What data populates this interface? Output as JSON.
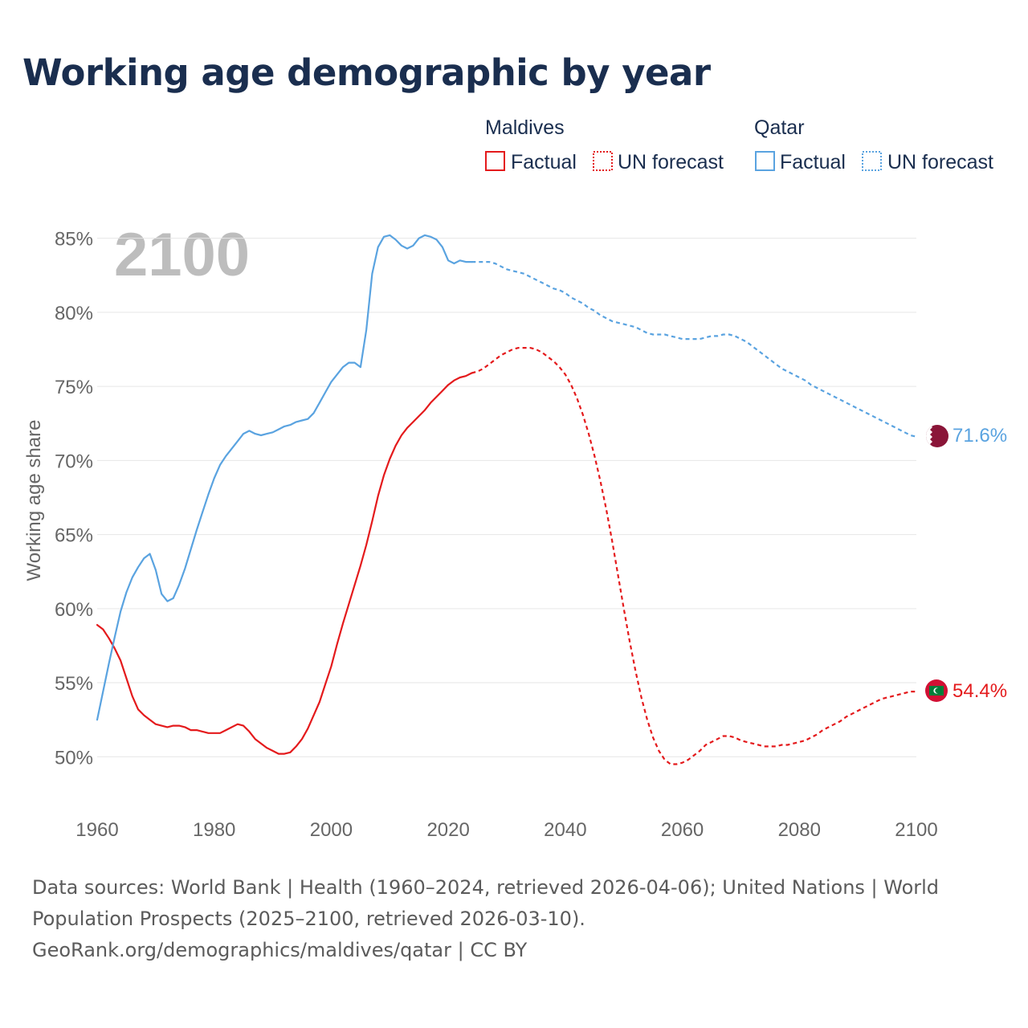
{
  "title": "Working age demographic by year",
  "year_watermark": "2100",
  "legend": {
    "groups": [
      {
        "name": "Maldives",
        "color": "#e41a1c",
        "factual_label": "Factual",
        "forecast_label": "UN forecast"
      },
      {
        "name": "Qatar",
        "color": "#5aa3e0",
        "factual_label": "Factual",
        "forecast_label": "UN forecast"
      }
    ]
  },
  "chart_data": {
    "type": "line",
    "title": "Working age demographic by year",
    "xlabel": "",
    "ylabel": "Working age share",
    "xlim": [
      1960,
      2100
    ],
    "ylim": [
      47.5,
      86.5
    ],
    "x_ticks": [
      1960,
      1980,
      2000,
      2020,
      2040,
      2060,
      2080,
      2100
    ],
    "y_ticks": [
      50,
      55,
      60,
      65,
      70,
      75,
      80,
      85
    ],
    "y_tick_labels": [
      "50%",
      "55%",
      "60%",
      "65%",
      "70%",
      "75%",
      "80%",
      "85%"
    ],
    "grid": true,
    "series": [
      {
        "name": "Maldives",
        "color": "#e41a1c",
        "end_label": "54.4%",
        "factual": [
          [
            1960,
            58.9
          ],
          [
            1961,
            58.6
          ],
          [
            1962,
            58.0
          ],
          [
            1963,
            57.3
          ],
          [
            1964,
            56.5
          ],
          [
            1965,
            55.3
          ],
          [
            1966,
            54.1
          ],
          [
            1967,
            53.2
          ],
          [
            1968,
            52.8
          ],
          [
            1969,
            52.5
          ],
          [
            1970,
            52.2
          ],
          [
            1971,
            52.1
          ],
          [
            1972,
            52.0
          ],
          [
            1973,
            52.1
          ],
          [
            1974,
            52.1
          ],
          [
            1975,
            52.0
          ],
          [
            1976,
            51.8
          ],
          [
            1977,
            51.8
          ],
          [
            1978,
            51.7
          ],
          [
            1979,
            51.6
          ],
          [
            1980,
            51.6
          ],
          [
            1981,
            51.6
          ],
          [
            1982,
            51.8
          ],
          [
            1983,
            52.0
          ],
          [
            1984,
            52.2
          ],
          [
            1985,
            52.1
          ],
          [
            1986,
            51.7
          ],
          [
            1987,
            51.2
          ],
          [
            1988,
            50.9
          ],
          [
            1989,
            50.6
          ],
          [
            1990,
            50.4
          ],
          [
            1991,
            50.2
          ],
          [
            1992,
            50.2
          ],
          [
            1993,
            50.3
          ],
          [
            1994,
            50.7
          ],
          [
            1995,
            51.2
          ],
          [
            1996,
            51.9
          ],
          [
            1997,
            52.8
          ],
          [
            1998,
            53.7
          ],
          [
            1999,
            54.9
          ],
          [
            2000,
            56.1
          ],
          [
            2001,
            57.6
          ],
          [
            2002,
            59.0
          ],
          [
            2003,
            60.3
          ],
          [
            2004,
            61.6
          ],
          [
            2005,
            62.9
          ],
          [
            2006,
            64.3
          ],
          [
            2007,
            65.9
          ],
          [
            2008,
            67.6
          ],
          [
            2009,
            69.0
          ],
          [
            2010,
            70.1
          ],
          [
            2011,
            71.0
          ],
          [
            2012,
            71.7
          ],
          [
            2013,
            72.2
          ],
          [
            2014,
            72.6
          ],
          [
            2015,
            73.0
          ],
          [
            2016,
            73.4
          ],
          [
            2017,
            73.9
          ],
          [
            2018,
            74.3
          ],
          [
            2019,
            74.7
          ],
          [
            2020,
            75.1
          ],
          [
            2021,
            75.4
          ],
          [
            2022,
            75.6
          ],
          [
            2023,
            75.7
          ],
          [
            2024,
            75.9
          ]
        ],
        "forecast": [
          [
            2024,
            75.9
          ],
          [
            2025,
            76.0
          ],
          [
            2026,
            76.2
          ],
          [
            2027,
            76.5
          ],
          [
            2028,
            76.8
          ],
          [
            2029,
            77.1
          ],
          [
            2030,
            77.3
          ],
          [
            2031,
            77.5
          ],
          [
            2032,
            77.6
          ],
          [
            2033,
            77.6
          ],
          [
            2034,
            77.6
          ],
          [
            2035,
            77.5
          ],
          [
            2036,
            77.3
          ],
          [
            2037,
            77.0
          ],
          [
            2038,
            76.7
          ],
          [
            2039,
            76.3
          ],
          [
            2040,
            75.8
          ],
          [
            2041,
            75.1
          ],
          [
            2042,
            74.2
          ],
          [
            2043,
            73.1
          ],
          [
            2044,
            71.8
          ],
          [
            2045,
            70.3
          ],
          [
            2046,
            68.6
          ],
          [
            2047,
            66.7
          ],
          [
            2048,
            64.6
          ],
          [
            2049,
            62.3
          ],
          [
            2050,
            60.0
          ],
          [
            2051,
            57.8
          ],
          [
            2052,
            55.8
          ],
          [
            2053,
            54.0
          ],
          [
            2054,
            52.5
          ],
          [
            2055,
            51.3
          ],
          [
            2056,
            50.4
          ],
          [
            2057,
            49.8
          ],
          [
            2058,
            49.5
          ],
          [
            2059,
            49.5
          ],
          [
            2060,
            49.6
          ],
          [
            2061,
            49.8
          ],
          [
            2062,
            50.1
          ],
          [
            2063,
            50.4
          ],
          [
            2064,
            50.8
          ],
          [
            2065,
            51.0
          ],
          [
            2066,
            51.2
          ],
          [
            2067,
            51.4
          ],
          [
            2068,
            51.4
          ],
          [
            2069,
            51.3
          ],
          [
            2070,
            51.1
          ],
          [
            2071,
            51.0
          ],
          [
            2072,
            50.9
          ],
          [
            2073,
            50.8
          ],
          [
            2074,
            50.7
          ],
          [
            2075,
            50.7
          ],
          [
            2076,
            50.7
          ],
          [
            2077,
            50.8
          ],
          [
            2078,
            50.8
          ],
          [
            2079,
            50.9
          ],
          [
            2080,
            51.0
          ],
          [
            2081,
            51.1
          ],
          [
            2082,
            51.3
          ],
          [
            2083,
            51.5
          ],
          [
            2084,
            51.8
          ],
          [
            2085,
            52.0
          ],
          [
            2086,
            52.2
          ],
          [
            2087,
            52.4
          ],
          [
            2088,
            52.7
          ],
          [
            2089,
            52.9
          ],
          [
            2090,
            53.1
          ],
          [
            2091,
            53.3
          ],
          [
            2092,
            53.5
          ],
          [
            2093,
            53.7
          ],
          [
            2094,
            53.9
          ],
          [
            2095,
            54.0
          ],
          [
            2096,
            54.1
          ],
          [
            2097,
            54.2
          ],
          [
            2098,
            54.3
          ],
          [
            2099,
            54.4
          ],
          [
            2100,
            54.4
          ]
        ]
      },
      {
        "name": "Qatar",
        "color": "#5aa3e0",
        "end_label": "71.6%",
        "factual": [
          [
            1960,
            52.5
          ],
          [
            1961,
            54.4
          ],
          [
            1962,
            56.3
          ],
          [
            1963,
            58.1
          ],
          [
            1964,
            59.8
          ],
          [
            1965,
            61.1
          ],
          [
            1966,
            62.1
          ],
          [
            1967,
            62.8
          ],
          [
            1968,
            63.4
          ],
          [
            1969,
            63.7
          ],
          [
            1970,
            62.6
          ],
          [
            1971,
            61.0
          ],
          [
            1972,
            60.5
          ],
          [
            1973,
            60.7
          ],
          [
            1974,
            61.6
          ],
          [
            1975,
            62.7
          ],
          [
            1976,
            64.0
          ],
          [
            1977,
            65.3
          ],
          [
            1978,
            66.5
          ],
          [
            1979,
            67.7
          ],
          [
            1980,
            68.8
          ],
          [
            1981,
            69.7
          ],
          [
            1982,
            70.3
          ],
          [
            1983,
            70.8
          ],
          [
            1984,
            71.3
          ],
          [
            1985,
            71.8
          ],
          [
            1986,
            72.0
          ],
          [
            1987,
            71.8
          ],
          [
            1988,
            71.7
          ],
          [
            1989,
            71.8
          ],
          [
            1990,
            71.9
          ],
          [
            1991,
            72.1
          ],
          [
            1992,
            72.3
          ],
          [
            1993,
            72.4
          ],
          [
            1994,
            72.6
          ],
          [
            1995,
            72.7
          ],
          [
            1996,
            72.8
          ],
          [
            1997,
            73.2
          ],
          [
            1998,
            73.9
          ],
          [
            1999,
            74.6
          ],
          [
            2000,
            75.3
          ],
          [
            2001,
            75.8
          ],
          [
            2002,
            76.3
          ],
          [
            2003,
            76.6
          ],
          [
            2004,
            76.6
          ],
          [
            2005,
            76.3
          ],
          [
            2006,
            78.8
          ],
          [
            2007,
            82.6
          ],
          [
            2008,
            84.4
          ],
          [
            2009,
            85.1
          ],
          [
            2010,
            85.2
          ],
          [
            2011,
            84.9
          ],
          [
            2012,
            84.5
          ],
          [
            2013,
            84.3
          ],
          [
            2014,
            84.5
          ],
          [
            2015,
            85.0
          ],
          [
            2016,
            85.2
          ],
          [
            2017,
            85.1
          ],
          [
            2018,
            84.9
          ],
          [
            2019,
            84.4
          ],
          [
            2020,
            83.5
          ],
          [
            2021,
            83.3
          ],
          [
            2022,
            83.5
          ],
          [
            2023,
            83.4
          ],
          [
            2024,
            83.4
          ]
        ],
        "forecast": [
          [
            2024,
            83.4
          ],
          [
            2025,
            83.4
          ],
          [
            2026,
            83.4
          ],
          [
            2027,
            83.4
          ],
          [
            2028,
            83.3
          ],
          [
            2029,
            83.1
          ],
          [
            2030,
            82.9
          ],
          [
            2031,
            82.8
          ],
          [
            2032,
            82.7
          ],
          [
            2033,
            82.6
          ],
          [
            2034,
            82.4
          ],
          [
            2035,
            82.2
          ],
          [
            2036,
            82.0
          ],
          [
            2037,
            81.8
          ],
          [
            2038,
            81.6
          ],
          [
            2039,
            81.5
          ],
          [
            2040,
            81.3
          ],
          [
            2041,
            81.0
          ],
          [
            2042,
            80.8
          ],
          [
            2043,
            80.6
          ],
          [
            2044,
            80.3
          ],
          [
            2045,
            80.1
          ],
          [
            2046,
            79.8
          ],
          [
            2047,
            79.6
          ],
          [
            2048,
            79.4
          ],
          [
            2049,
            79.3
          ],
          [
            2050,
            79.2
          ],
          [
            2051,
            79.1
          ],
          [
            2052,
            79.0
          ],
          [
            2053,
            78.8
          ],
          [
            2054,
            78.6
          ],
          [
            2055,
            78.5
          ],
          [
            2056,
            78.5
          ],
          [
            2057,
            78.5
          ],
          [
            2058,
            78.4
          ],
          [
            2059,
            78.3
          ],
          [
            2060,
            78.2
          ],
          [
            2061,
            78.2
          ],
          [
            2062,
            78.2
          ],
          [
            2063,
            78.2
          ],
          [
            2064,
            78.3
          ],
          [
            2065,
            78.4
          ],
          [
            2066,
            78.4
          ],
          [
            2067,
            78.5
          ],
          [
            2068,
            78.5
          ],
          [
            2069,
            78.4
          ],
          [
            2070,
            78.2
          ],
          [
            2071,
            78.0
          ],
          [
            2072,
            77.7
          ],
          [
            2073,
            77.4
          ],
          [
            2074,
            77.1
          ],
          [
            2075,
            76.8
          ],
          [
            2076,
            76.5
          ],
          [
            2077,
            76.2
          ],
          [
            2078,
            76.0
          ],
          [
            2079,
            75.8
          ],
          [
            2080,
            75.6
          ],
          [
            2081,
            75.4
          ],
          [
            2082,
            75.1
          ],
          [
            2083,
            74.9
          ],
          [
            2084,
            74.7
          ],
          [
            2085,
            74.5
          ],
          [
            2086,
            74.3
          ],
          [
            2087,
            74.1
          ],
          [
            2088,
            73.9
          ],
          [
            2089,
            73.7
          ],
          [
            2090,
            73.5
          ],
          [
            2091,
            73.3
          ],
          [
            2092,
            73.1
          ],
          [
            2093,
            72.9
          ],
          [
            2094,
            72.7
          ],
          [
            2095,
            72.5
          ],
          [
            2096,
            72.3
          ],
          [
            2097,
            72.1
          ],
          [
            2098,
            71.9
          ],
          [
            2099,
            71.7
          ],
          [
            2100,
            71.6
          ]
        ]
      }
    ]
  },
  "footer": {
    "line1": "Data sources: World Bank | Health (1960–2024, retrieved 2026-04-06); United Nations | World",
    "line2": "Population Prospects (2025–2100, retrieved 2026-03-10).",
    "line3": "GeoRank.org/demographics/maldives/qatar | CC BY"
  }
}
